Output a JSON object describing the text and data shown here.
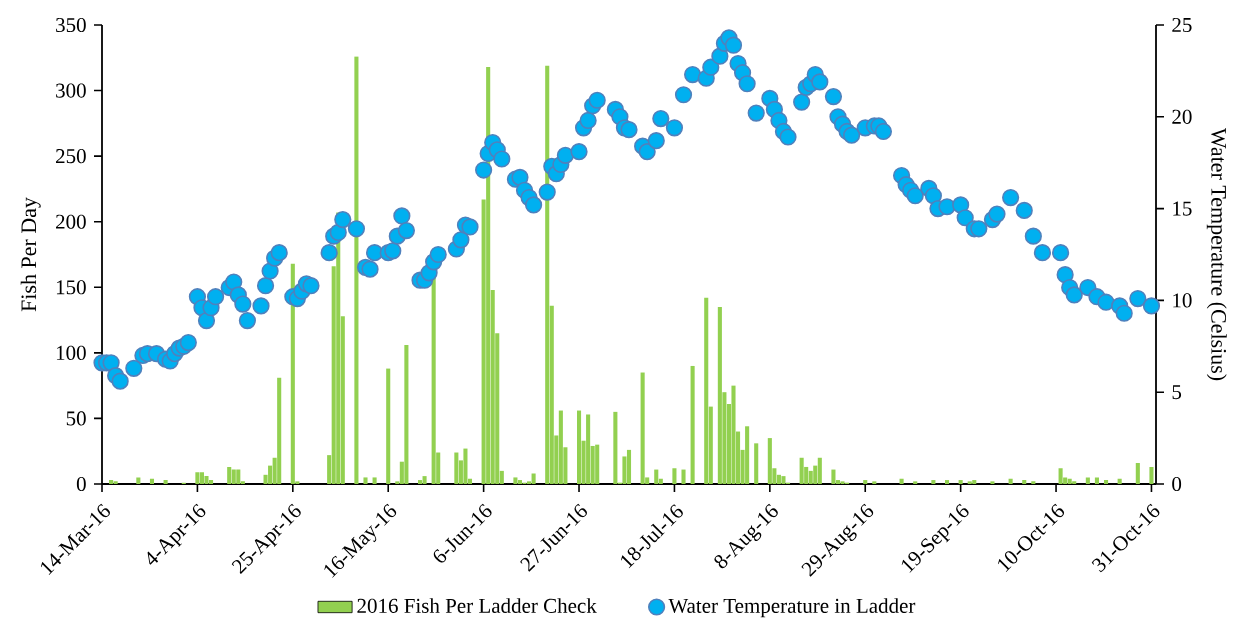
{
  "chart_data": {
    "type": "bar",
    "ylabel": "Fish Per Day",
    "y2label": "Water Temperature (Celsius)",
    "xlim": [
      "2016-03-14",
      "2016-11-01"
    ],
    "xticks": [
      {
        "value": "2016-03-14",
        "label": "14-Mar-16"
      },
      {
        "value": "2016-04-04",
        "label": "4-Apr-16"
      },
      {
        "value": "2016-04-25",
        "label": "25-Apr-16"
      },
      {
        "value": "2016-05-16",
        "label": "16-May-16"
      },
      {
        "value": "2016-06-06",
        "label": "6-Jun-16"
      },
      {
        "value": "2016-06-27",
        "label": "27-Jun-16"
      },
      {
        "value": "2016-07-18",
        "label": "18-Jul-16"
      },
      {
        "value": "2016-08-08",
        "label": "8-Aug-16"
      },
      {
        "value": "2016-08-29",
        "label": "29-Aug-16"
      },
      {
        "value": "2016-09-19",
        "label": "19-Sep-16"
      },
      {
        "value": "2016-10-10",
        "label": "10-Oct-16"
      },
      {
        "value": "2016-10-31",
        "label": "31-Oct-16"
      }
    ],
    "ylim": [
      0,
      350
    ],
    "yticks": [
      0,
      50,
      100,
      150,
      200,
      250,
      300,
      350
    ],
    "y2lim": [
      0,
      25
    ],
    "y2ticks": [
      0,
      5,
      10,
      15,
      20,
      25
    ],
    "legend": "bottom",
    "grid": false,
    "marker": "circle",
    "series": [
      {
        "name": "2016 Fish Per Ladder Check",
        "color": "#92d050",
        "x": [
          "2016-03-16",
          "2016-03-17",
          "2016-03-22",
          "2016-03-25",
          "2016-03-28",
          "2016-04-01",
          "2016-04-04",
          "2016-04-05",
          "2016-04-06",
          "2016-04-07",
          "2016-04-11",
          "2016-04-12",
          "2016-04-13",
          "2016-04-14",
          "2016-04-19",
          "2016-04-20",
          "2016-04-21",
          "2016-04-22",
          "2016-04-25",
          "2016-04-26",
          "2016-05-03",
          "2016-05-04",
          "2016-05-05",
          "2016-05-06",
          "2016-05-09",
          "2016-05-11",
          "2016-05-13",
          "2016-05-16",
          "2016-05-18",
          "2016-05-19",
          "2016-05-20",
          "2016-05-23",
          "2016-05-24",
          "2016-05-26",
          "2016-05-27",
          "2016-05-31",
          "2016-06-01",
          "2016-06-02",
          "2016-06-03",
          "2016-06-06",
          "2016-06-07",
          "2016-06-08",
          "2016-06-09",
          "2016-06-10",
          "2016-06-13",
          "2016-06-14",
          "2016-06-15",
          "2016-06-16",
          "2016-06-17",
          "2016-06-20",
          "2016-06-21",
          "2016-06-22",
          "2016-06-23",
          "2016-06-24",
          "2016-06-27",
          "2016-06-28",
          "2016-06-29",
          "2016-06-30",
          "2016-07-01",
          "2016-07-05",
          "2016-07-06",
          "2016-07-07",
          "2016-07-08",
          "2016-07-11",
          "2016-07-12",
          "2016-07-14",
          "2016-07-15",
          "2016-07-18",
          "2016-07-20",
          "2016-07-22",
          "2016-07-25",
          "2016-07-26",
          "2016-07-28",
          "2016-07-29",
          "2016-07-30",
          "2016-07-31",
          "2016-08-01",
          "2016-08-02",
          "2016-08-03",
          "2016-08-05",
          "2016-08-08",
          "2016-08-09",
          "2016-08-10",
          "2016-08-11",
          "2016-08-12",
          "2016-08-15",
          "2016-08-16",
          "2016-08-17",
          "2016-08-18",
          "2016-08-19",
          "2016-08-22",
          "2016-08-23",
          "2016-08-24",
          "2016-08-25",
          "2016-08-29",
          "2016-08-31",
          "2016-09-06",
          "2016-09-09",
          "2016-09-13",
          "2016-09-16",
          "2016-09-19",
          "2016-09-21",
          "2016-09-22",
          "2016-09-26",
          "2016-09-30",
          "2016-10-03",
          "2016-10-05",
          "2016-10-11",
          "2016-10-12",
          "2016-10-13",
          "2016-10-14",
          "2016-10-17",
          "2016-10-19",
          "2016-10-21",
          "2016-10-24",
          "2016-10-28",
          "2016-10-31"
        ],
        "values": [
          3,
          2,
          5,
          4,
          3,
          1,
          9,
          9,
          6,
          3,
          13,
          11,
          11,
          2,
          7,
          14,
          20,
          81,
          168,
          2,
          22,
          166,
          207,
          128,
          326,
          5,
          5,
          88,
          2,
          17,
          106,
          3,
          6,
          158,
          24,
          24,
          18,
          27,
          4,
          217,
          318,
          148,
          115,
          10,
          5,
          3,
          1,
          2,
          8,
          319,
          136,
          37,
          56,
          28,
          56,
          33,
          53,
          29,
          30,
          55,
          1,
          21,
          26,
          85,
          5,
          11,
          4,
          12,
          11,
          90,
          142,
          59,
          135,
          70,
          61,
          75,
          40,
          26,
          44,
          31,
          35,
          12,
          7,
          6,
          1,
          20,
          13,
          10,
          14,
          20,
          11,
          3,
          2,
          1,
          3,
          2,
          4,
          2,
          3,
          3,
          3,
          2,
          3,
          2,
          4,
          3,
          2,
          12,
          5,
          4,
          2,
          5,
          5,
          3,
          4,
          16,
          13
        ]
      },
      {
        "name": "Water Temperature in Ladder",
        "type": "scatter",
        "axis": "y2",
        "color": "#00b0f0",
        "x": [
          "2016-03-14",
          "2016-03-15",
          "2016-03-16",
          "2016-03-17",
          "2016-03-18",
          "2016-03-21",
          "2016-03-23",
          "2016-03-24",
          "2016-03-26",
          "2016-03-28",
          "2016-03-29",
          "2016-03-30",
          "2016-03-31",
          "2016-04-01",
          "2016-04-02",
          "2016-04-04",
          "2016-04-05",
          "2016-04-06",
          "2016-04-07",
          "2016-04-08",
          "2016-04-11",
          "2016-04-12",
          "2016-04-13",
          "2016-04-14",
          "2016-04-15",
          "2016-04-18",
          "2016-04-19",
          "2016-04-20",
          "2016-04-21",
          "2016-04-22",
          "2016-04-25",
          "2016-04-26",
          "2016-04-27",
          "2016-04-28",
          "2016-04-29",
          "2016-05-03",
          "2016-05-04",
          "2016-05-05",
          "2016-05-06",
          "2016-05-09",
          "2016-05-11",
          "2016-05-12",
          "2016-05-13",
          "2016-05-16",
          "2016-05-17",
          "2016-05-18",
          "2016-05-19",
          "2016-05-20",
          "2016-05-23",
          "2016-05-24",
          "2016-05-25",
          "2016-05-26",
          "2016-05-27",
          "2016-05-31",
          "2016-06-01",
          "2016-06-02",
          "2016-06-03",
          "2016-06-06",
          "2016-06-07",
          "2016-06-08",
          "2016-06-09",
          "2016-06-10",
          "2016-06-13",
          "2016-06-14",
          "2016-06-15",
          "2016-06-16",
          "2016-06-17",
          "2016-06-20",
          "2016-06-21",
          "2016-06-22",
          "2016-06-23",
          "2016-06-24",
          "2016-06-27",
          "2016-06-28",
          "2016-06-29",
          "2016-06-30",
          "2016-07-01",
          "2016-07-05",
          "2016-07-06",
          "2016-07-07",
          "2016-07-08",
          "2016-07-11",
          "2016-07-12",
          "2016-07-14",
          "2016-07-15",
          "2016-07-18",
          "2016-07-20",
          "2016-07-22",
          "2016-07-25",
          "2016-07-26",
          "2016-07-28",
          "2016-07-29",
          "2016-07-30",
          "2016-07-31",
          "2016-08-01",
          "2016-08-02",
          "2016-08-03",
          "2016-08-05",
          "2016-08-08",
          "2016-08-09",
          "2016-08-10",
          "2016-08-11",
          "2016-08-12",
          "2016-08-15",
          "2016-08-16",
          "2016-08-17",
          "2016-08-18",
          "2016-08-19",
          "2016-08-22",
          "2016-08-23",
          "2016-08-24",
          "2016-08-25",
          "2016-08-26",
          "2016-08-29",
          "2016-08-31",
          "2016-09-01",
          "2016-09-02",
          "2016-09-06",
          "2016-09-07",
          "2016-09-08",
          "2016-09-09",
          "2016-09-12",
          "2016-09-13",
          "2016-09-14",
          "2016-09-16",
          "2016-09-19",
          "2016-09-20",
          "2016-09-22",
          "2016-09-23",
          "2016-09-26",
          "2016-09-27",
          "2016-09-30",
          "2016-10-03",
          "2016-10-05",
          "2016-10-07",
          "2016-10-11",
          "2016-10-12",
          "2016-10-13",
          "2016-10-14",
          "2016-10-17",
          "2016-10-19",
          "2016-10-21",
          "2016-10-24",
          "2016-10-25",
          "2016-10-28",
          "2016-10-31"
        ],
        "values": [
          6.6,
          6.6,
          6.6,
          5.9,
          5.6,
          6.3,
          7.0,
          7.1,
          7.1,
          6.8,
          6.7,
          7.1,
          7.4,
          7.5,
          7.7,
          10.2,
          9.6,
          8.9,
          9.6,
          10.2,
          10.7,
          11.0,
          10.3,
          9.8,
          8.9,
          9.7,
          10.8,
          11.6,
          12.3,
          12.6,
          10.2,
          10.1,
          10.5,
          10.9,
          10.8,
          12.6,
          13.5,
          13.7,
          14.4,
          13.9,
          11.8,
          11.7,
          12.6,
          12.6,
          12.7,
          13.5,
          14.6,
          13.8,
          11.1,
          11.1,
          11.5,
          12.1,
          12.5,
          12.8,
          13.3,
          14.1,
          14.0,
          17.1,
          18.0,
          18.6,
          18.2,
          17.7,
          16.6,
          16.7,
          16.0,
          15.6,
          15.2,
          15.9,
          17.3,
          16.9,
          17.4,
          17.9,
          18.1,
          19.4,
          19.8,
          20.6,
          20.9,
          20.4,
          20.0,
          19.4,
          19.3,
          18.4,
          18.1,
          18.7,
          19.9,
          19.4,
          21.2,
          22.3,
          22.1,
          22.7,
          23.3,
          24.0,
          24.3,
          23.9,
          22.9,
          22.4,
          21.8,
          20.2,
          21.0,
          20.4,
          19.8,
          19.2,
          18.9,
          20.8,
          21.6,
          21.8,
          22.3,
          21.9,
          21.1,
          20.0,
          19.6,
          19.2,
          19.0,
          19.4,
          19.5,
          19.5,
          19.2,
          16.8,
          16.3,
          16.0,
          15.7,
          16.1,
          15.7,
          15.0,
          15.1,
          15.2,
          14.5,
          13.9,
          13.9,
          14.4,
          14.7,
          15.6,
          14.9,
          13.5,
          12.6,
          12.6,
          11.4,
          10.7,
          10.3,
          10.7,
          10.2,
          9.9,
          9.7,
          9.3,
          10.1,
          9.7
        ]
      }
    ]
  }
}
